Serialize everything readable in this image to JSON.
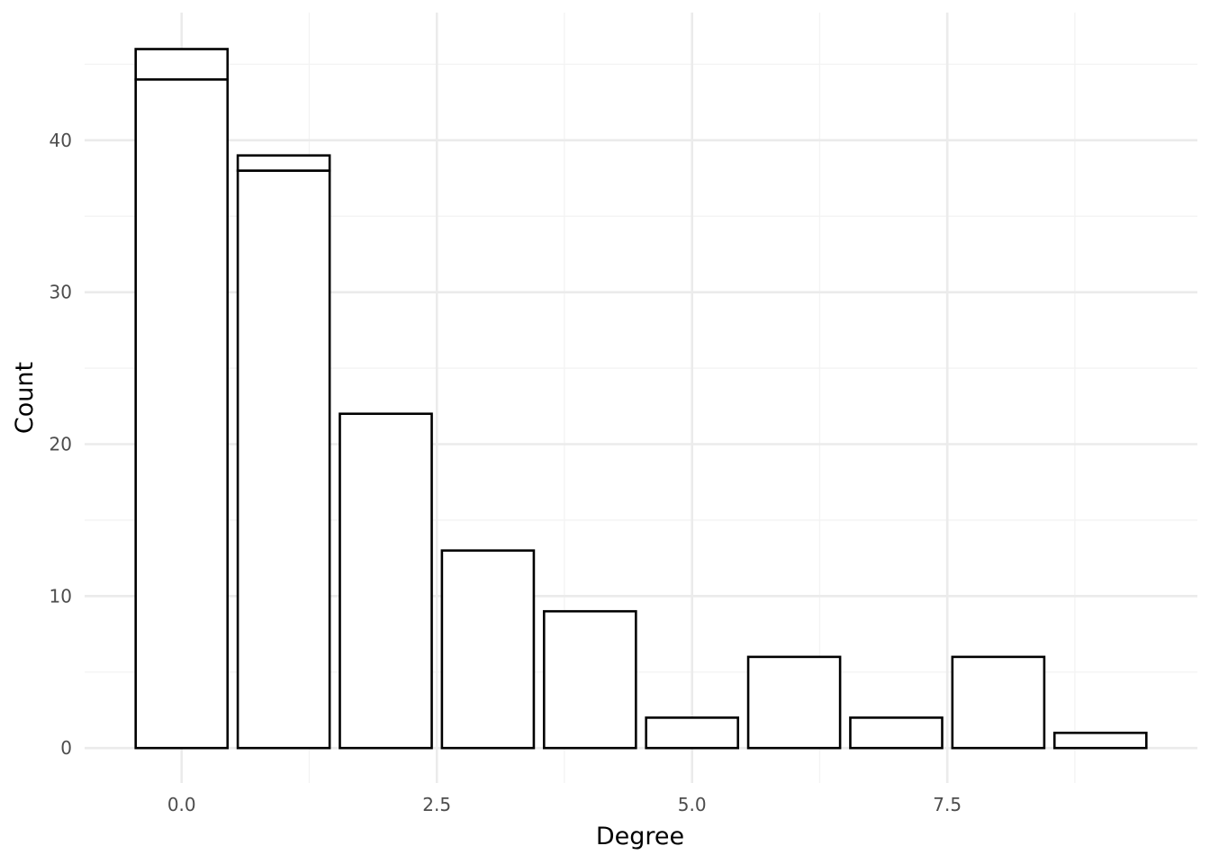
{
  "chart_data": {
    "type": "bar",
    "xlabel": "Degree",
    "ylabel": "Count",
    "x": [
      0,
      1,
      2,
      3,
      4,
      5,
      6,
      7,
      8,
      9
    ],
    "series": [
      {
        "values": [
          44,
          38,
          22,
          13,
          9,
          2,
          6,
          2,
          6,
          1
        ]
      },
      {
        "values": [
          2,
          1,
          0,
          0,
          0,
          0,
          0,
          0,
          0,
          0
        ]
      }
    ],
    "totals": [
      46,
      39,
      22,
      13,
      9,
      2,
      6,
      2,
      6,
      1
    ],
    "xlim": [
      -0.95,
      9.95
    ],
    "ylim": [
      -2.3,
      48.4
    ],
    "x_ticks": [
      "0.0",
      "2.5",
      "5.0",
      "7.5"
    ],
    "y_ticks": [
      "0",
      "10",
      "20",
      "30",
      "40"
    ],
    "grid": true,
    "bar_fill": "#ffffff",
    "bar_stroke": "#000000",
    "grid_color": "#ebebeb"
  }
}
